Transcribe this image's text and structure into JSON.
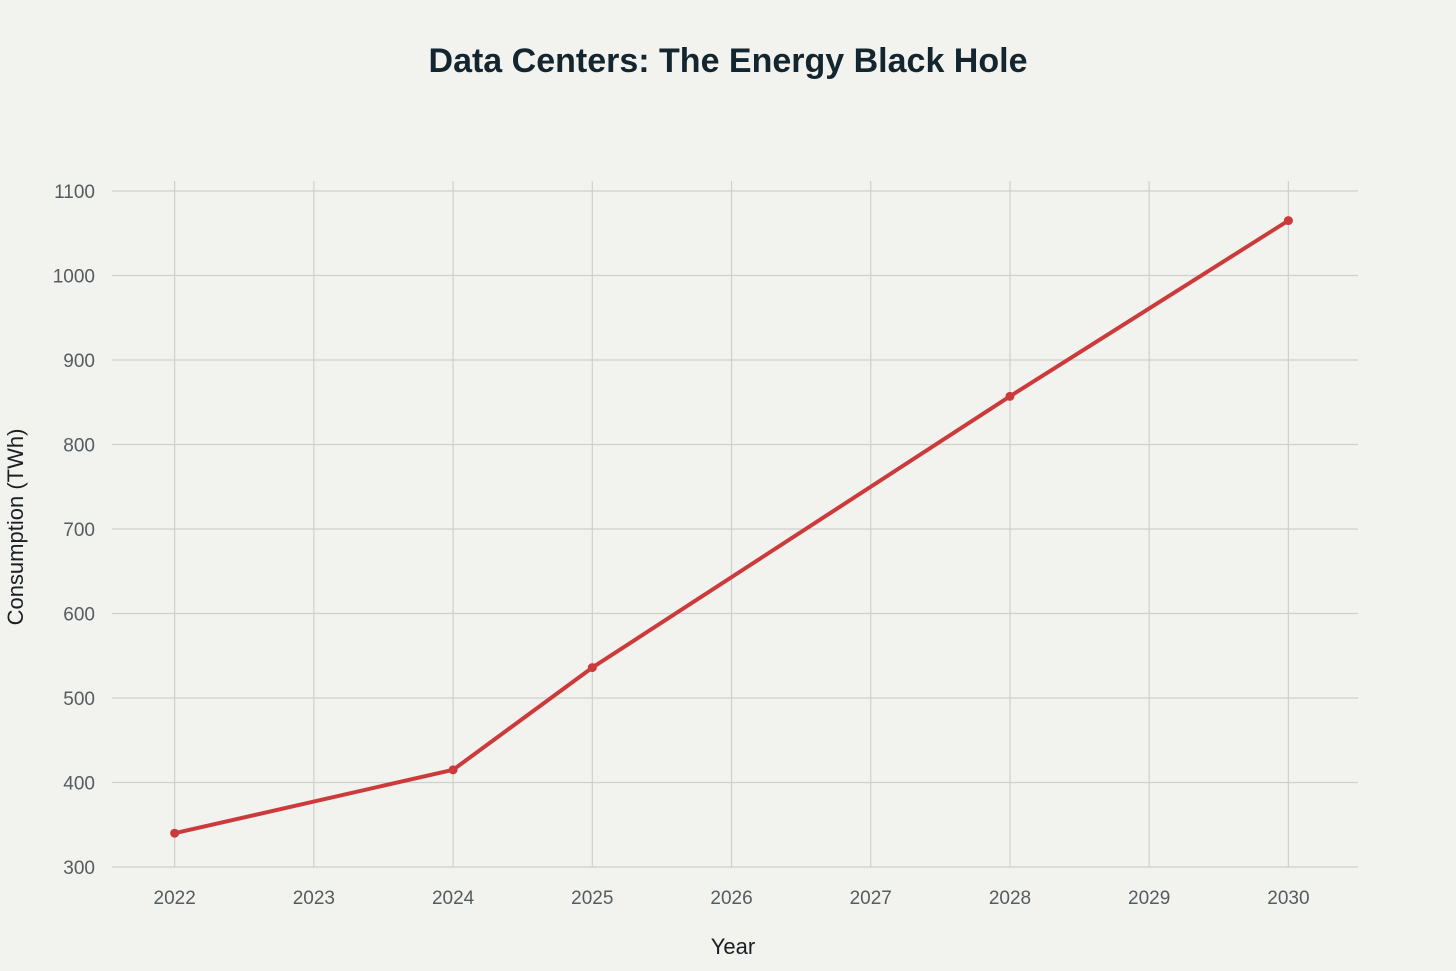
{
  "chart_data": {
    "type": "line",
    "title": "Data Centers: The Energy Black Hole",
    "xlabel": "Year",
    "ylabel": "Consumption (TWh)",
    "x_ticks": [
      "2022",
      "2023",
      "2024",
      "2025",
      "2026",
      "2027",
      "2028",
      "2029",
      "2030"
    ],
    "y_ticks": [
      300,
      400,
      500,
      600,
      700,
      800,
      900,
      1000,
      1100
    ],
    "xlim": [
      2021.55,
      2030.5
    ],
    "ylim": [
      300,
      1100
    ],
    "grid": true,
    "series": [
      {
        "name": "Consumption",
        "color": "#cc3b3b",
        "x": [
          2022,
          2024,
          2025,
          2028,
          2030
        ],
        "y": [
          340,
          415,
          536,
          857,
          1065
        ]
      }
    ]
  }
}
